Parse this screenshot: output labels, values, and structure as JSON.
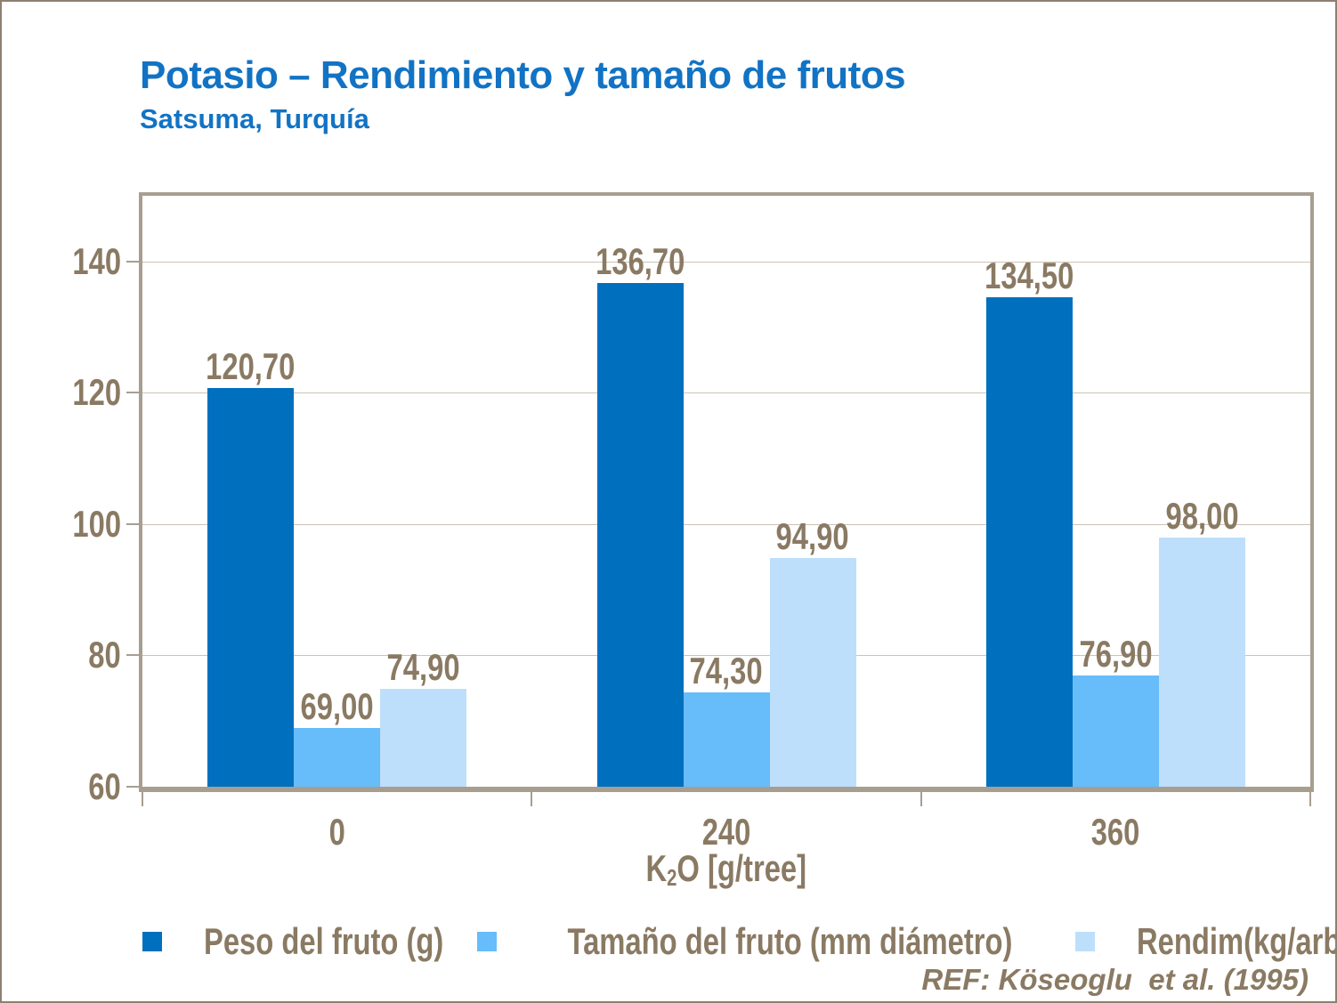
{
  "chart_data": {
    "type": "bar",
    "title": "Potasio – Rendimiento y tamaño de frutos",
    "subtitle": "Satsuma, Turquía",
    "categories": [
      "0",
      "240",
      "360"
    ],
    "xlabel": "K2O [g/tree]",
    "xlabel_parts": {
      "base": "K",
      "sub": "2",
      "rest": "O [g/tree]"
    },
    "ylabel": "",
    "ylim": [
      60,
      150
    ],
    "yticks": [
      60,
      80,
      100,
      120,
      140
    ],
    "grid": true,
    "legend_position": "bottom",
    "series": [
      {
        "key": "peso",
        "name": "Peso del fruto (g)",
        "color": "#0070BE",
        "values": [
          120.7,
          136.7,
          134.5
        ],
        "labels": [
          "120,70",
          "136,70",
          "134,50"
        ]
      },
      {
        "key": "tamano",
        "name": "Tamaño del fruto (mm diámetro)",
        "color": "#67BCFA",
        "values": [
          69.0,
          74.3,
          76.9
        ],
        "labels": [
          "69,00",
          "74,30",
          "76,90"
        ]
      },
      {
        "key": "rendim",
        "name": "Rendim(kg/arbol)",
        "color": "#BDDFFB",
        "values": [
          74.9,
          94.9,
          98.0
        ],
        "labels": [
          "74,90",
          "94,90",
          "98,00"
        ]
      }
    ],
    "ref": "REF: Köseoglu  et al. (1995)",
    "colors": {
      "title_blue": "#1273C4",
      "text_brown": "#8A7A63",
      "frame_gray": "#A89E90",
      "gridline": "#CCC3B6",
      "slide_border": "#8E8071"
    }
  }
}
